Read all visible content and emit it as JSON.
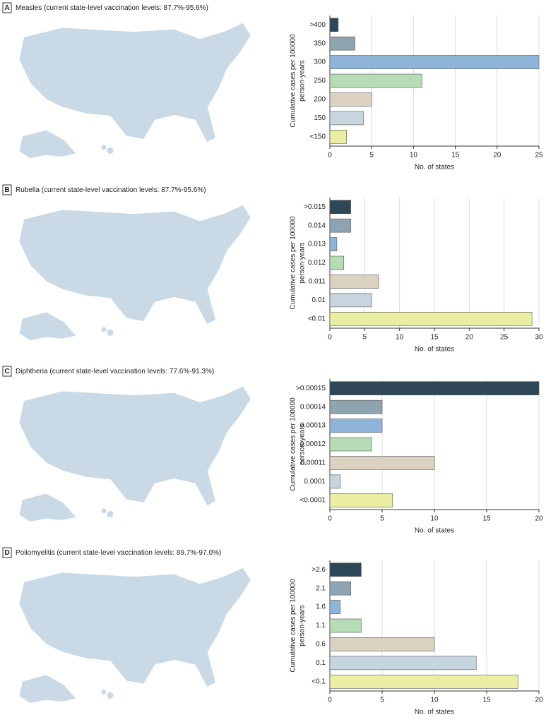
{
  "chart_data": [
    {
      "type": "bar",
      "label": "A",
      "title": "Measles (current state-level vaccination levels: 87.7%-95.6%)",
      "categories": [
        ">400",
        "350",
        "300",
        "250",
        "200",
        "150",
        "<150"
      ],
      "values": [
        1,
        3,
        25,
        11,
        5,
        4,
        2
      ],
      "colors": [
        "#2f4858",
        "#8ea4b1",
        "#8eb4da",
        "#b6dcb6",
        "#dbd2c2",
        "#c7d5df",
        "#e9eea3"
      ],
      "xlim": [
        0,
        25
      ],
      "xticks": [
        0,
        5,
        10,
        15,
        20,
        25
      ],
      "xlabel": "No. of states",
      "ylabel": [
        "Cumulative cases per 100000",
        "person-years"
      ],
      "grid": true
    },
    {
      "type": "bar",
      "label": "B",
      "title": "Rubella (current state-level vaccination levels: 87.7%-95.6%)",
      "categories": [
        ">0.015",
        "0.014",
        "0.013",
        "0.012",
        "0.011",
        "0.01",
        "<0.01"
      ],
      "values": [
        3,
        3,
        1,
        2,
        7,
        6,
        29
      ],
      "colors": [
        "#2f4858",
        "#8ea4b1",
        "#8eb4da",
        "#b6dcb6",
        "#dbd2c2",
        "#c7d5df",
        "#e9eea3"
      ],
      "xlim": [
        0,
        30
      ],
      "xticks": [
        0,
        5,
        10,
        15,
        20,
        25,
        30
      ],
      "xlabel": "No. of states",
      "ylabel": [
        "Cumulative cases per 100000",
        "person-years"
      ],
      "grid": true
    },
    {
      "type": "bar",
      "label": "C",
      "title": "Diphtheria (current state-level vaccination levels: 77.6%-91.3%)",
      "categories": [
        ">0.00015",
        "0.00014",
        "0.00013",
        "0.00012",
        "0.00011",
        "0.0001",
        "<0.0001"
      ],
      "values": [
        20,
        5,
        5,
        4,
        10,
        1,
        6
      ],
      "colors": [
        "#2f4858",
        "#8ea4b1",
        "#8eb4da",
        "#b6dcb6",
        "#dbd2c2",
        "#c7d5df",
        "#e9eea3"
      ],
      "xlim": [
        0,
        20
      ],
      "xticks": [
        0,
        5,
        10,
        15,
        20
      ],
      "xlabel": "No. of states",
      "ylabel": [
        "Cumulative cases per 100000",
        "person-years"
      ],
      "grid": true
    },
    {
      "type": "bar",
      "label": "D",
      "title": "Poliomyelitis (current state-level vaccination levels: 89.7%-97.0%)",
      "categories": [
        ">2.6",
        "2.1",
        "1.6",
        "1.1",
        "0.6",
        "0.1",
        "<0.1"
      ],
      "values": [
        3,
        2,
        1,
        3,
        10,
        14,
        18
      ],
      "colors": [
        "#2f4858",
        "#8ea4b1",
        "#8eb4da",
        "#b6dcb6",
        "#dbd2c2",
        "#c7d5df",
        "#e9eea3"
      ],
      "xlim": [
        0,
        20
      ],
      "xticks": [
        0,
        5,
        10,
        15,
        20
      ],
      "xlabel": "No. of states",
      "ylabel": [
        "Cumulative cases per 100000",
        "person-years"
      ],
      "grid": true
    }
  ]
}
